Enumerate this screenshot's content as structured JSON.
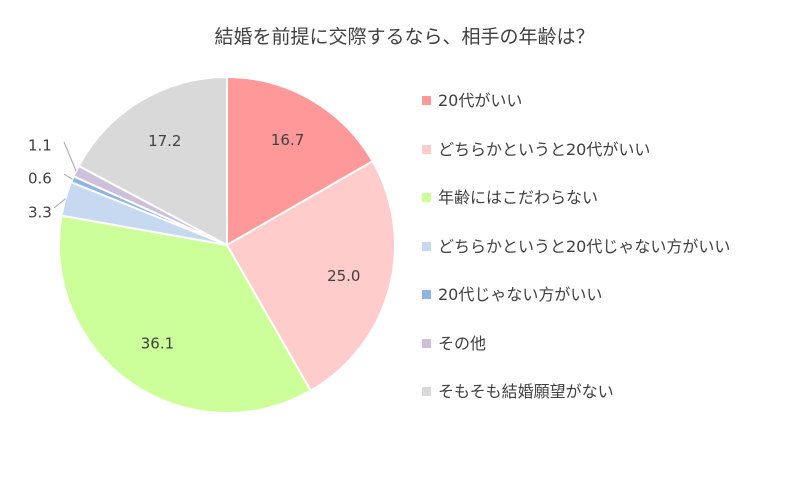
{
  "chart_data": {
    "type": "pie",
    "title": "結婚を前提に交際するなら、相手の年齢は？",
    "categories": [
      "20代がいい",
      "どちらかというと20代がいい",
      "年齢にはこだわらない",
      "どちらかというと20代じゃない方がいい",
      "20代じゃない方がいい",
      "その他",
      "そもそも結婚願望がない"
    ],
    "values": [
      16.7,
      25.0,
      36.1,
      3.3,
      0.6,
      1.1,
      17.2
    ],
    "value_labels": [
      "16.7",
      "25.0",
      "36.1",
      "3.3",
      "0.6",
      "1.1",
      "17.2"
    ],
    "colors": [
      "#ff9999",
      "#ffcccc",
      "#ccff99",
      "#c6d9f1",
      "#8eb4e3",
      "#ccc0da",
      "#d9d9d9"
    ],
    "start": "12 o'clock",
    "direction": "clockwise",
    "legend_position": "right"
  }
}
